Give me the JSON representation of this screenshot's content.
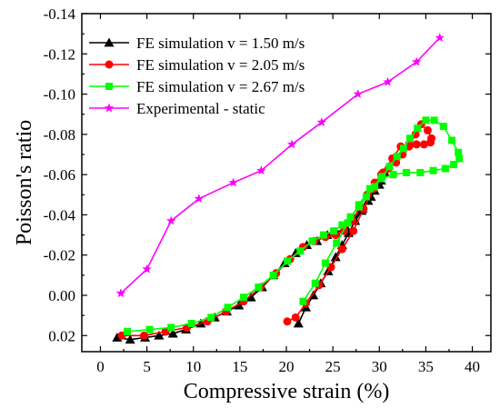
{
  "chart_data": {
    "type": "line",
    "xlabel": "Compressive strain (%)",
    "ylabel": "Poisson's ratio",
    "xlim": [
      -2,
      42
    ],
    "ylim": [
      -0.14,
      0.028
    ],
    "y_axis_inverted": true,
    "legend_position": "top-left",
    "grid": false,
    "x_ticks": [
      0,
      5,
      10,
      15,
      20,
      25,
      30,
      35,
      40
    ],
    "x_tick_labels": [
      "0",
      "5",
      "10",
      "15",
      "20",
      "25",
      "30",
      "35",
      "40"
    ],
    "y_ticks": [
      -0.14,
      -0.12,
      -0.1,
      -0.08,
      -0.06,
      -0.04,
      -0.02,
      0.0,
      0.02
    ],
    "y_tick_labels": [
      "-0.14",
      "-0.12",
      "-0.10",
      "-0.08",
      "-0.06",
      "-0.04",
      "-0.02",
      "0.00",
      "0.02"
    ],
    "series": [
      {
        "name": "FE simulation v = 1.50 m/s",
        "color": "#000000",
        "marker": "triangle",
        "points": [
          [
            1.8,
            0.021
          ],
          [
            3.2,
            0.022
          ],
          [
            4.8,
            0.021
          ],
          [
            6.3,
            0.02
          ],
          [
            7.8,
            0.019
          ],
          [
            9.2,
            0.017
          ],
          [
            10.8,
            0.014
          ],
          [
            12.3,
            0.011
          ],
          [
            13.6,
            0.008
          ],
          [
            14.9,
            0.005
          ],
          [
            16.2,
            0.001
          ],
          [
            17.4,
            -0.004
          ],
          [
            18.6,
            -0.01
          ],
          [
            19.8,
            -0.016
          ],
          [
            21.0,
            -0.021
          ],
          [
            22.2,
            -0.025
          ],
          [
            23.3,
            -0.027
          ],
          [
            24.4,
            -0.03
          ],
          [
            25.4,
            -0.031
          ],
          [
            26.4,
            -0.034
          ],
          [
            27.3,
            -0.038
          ],
          [
            28.2,
            -0.043
          ],
          [
            29.1,
            -0.049
          ],
          [
            30.0,
            -0.055
          ],
          [
            30.6,
            -0.061
          ],
          [
            30.2,
            -0.057
          ],
          [
            29.5,
            -0.052
          ],
          [
            28.8,
            -0.047
          ],
          [
            28.1,
            -0.042
          ],
          [
            27.4,
            -0.037
          ],
          [
            26.7,
            -0.031
          ],
          [
            26.0,
            -0.025
          ],
          [
            25.3,
            -0.019
          ],
          [
            24.5,
            -0.012
          ],
          [
            23.7,
            -0.006
          ],
          [
            22.9,
            0.0
          ],
          [
            22.1,
            0.006
          ],
          [
            21.3,
            0.014
          ]
        ]
      },
      {
        "name": "FE simulation v = 2.05 m/s",
        "color": "#ff0000",
        "marker": "circle",
        "points": [
          [
            2.3,
            0.02
          ],
          [
            4.7,
            0.02
          ],
          [
            7.0,
            0.018
          ],
          [
            9.3,
            0.016
          ],
          [
            11.5,
            0.013
          ],
          [
            13.5,
            0.008
          ],
          [
            15.4,
            0.003
          ],
          [
            17.2,
            -0.004
          ],
          [
            18.9,
            -0.011
          ],
          [
            20.4,
            -0.018
          ],
          [
            21.8,
            -0.024
          ],
          [
            23.0,
            -0.027
          ],
          [
            24.2,
            -0.029
          ],
          [
            25.3,
            -0.03
          ],
          [
            26.2,
            -0.032
          ],
          [
            27.1,
            -0.037
          ],
          [
            27.9,
            -0.044
          ],
          [
            28.7,
            -0.05
          ],
          [
            29.5,
            -0.056
          ],
          [
            30.2,
            -0.06
          ],
          [
            31.0,
            -0.063
          ],
          [
            31.8,
            -0.066
          ],
          [
            32.5,
            -0.07
          ],
          [
            33.2,
            -0.074
          ],
          [
            33.9,
            -0.08
          ],
          [
            34.5,
            -0.085
          ],
          [
            35.2,
            -0.082
          ],
          [
            35.6,
            -0.078
          ],
          [
            35.5,
            -0.076
          ],
          [
            34.8,
            -0.075
          ],
          [
            34.0,
            -0.075
          ],
          [
            33.2,
            -0.075
          ],
          [
            32.3,
            -0.074
          ],
          [
            31.4,
            -0.068
          ],
          [
            30.4,
            -0.061
          ],
          [
            29.4,
            -0.053
          ],
          [
            28.3,
            -0.043
          ],
          [
            27.2,
            -0.032
          ],
          [
            26.0,
            -0.023
          ],
          [
            24.8,
            -0.014
          ],
          [
            23.5,
            -0.005
          ],
          [
            22.1,
            0.004
          ],
          [
            21.0,
            0.011
          ],
          [
            20.1,
            0.013
          ]
        ]
      },
      {
        "name": "FE simulation v = 2.67 m/s",
        "color": "#00ff00",
        "marker": "square",
        "points": [
          [
            2.9,
            0.018
          ],
          [
            5.3,
            0.017
          ],
          [
            7.6,
            0.016
          ],
          [
            9.8,
            0.014
          ],
          [
            11.9,
            0.011
          ],
          [
            13.7,
            0.006
          ],
          [
            15.4,
            0.001
          ],
          [
            17.0,
            -0.004
          ],
          [
            18.6,
            -0.01
          ],
          [
            20.1,
            -0.017
          ],
          [
            21.5,
            -0.022
          ],
          [
            22.8,
            -0.027
          ],
          [
            24.0,
            -0.03
          ],
          [
            25.1,
            -0.032
          ],
          [
            26.0,
            -0.035
          ],
          [
            26.9,
            -0.039
          ],
          [
            27.8,
            -0.044
          ],
          [
            28.6,
            -0.049
          ],
          [
            29.5,
            -0.054
          ],
          [
            30.3,
            -0.059
          ],
          [
            31.1,
            -0.064
          ],
          [
            31.9,
            -0.069
          ],
          [
            32.6,
            -0.073
          ],
          [
            33.3,
            -0.078
          ],
          [
            34.1,
            -0.083
          ],
          [
            35.0,
            -0.087
          ],
          [
            35.9,
            -0.087
          ],
          [
            36.9,
            -0.084
          ],
          [
            37.8,
            -0.077
          ],
          [
            38.5,
            -0.071
          ],
          [
            38.6,
            -0.068
          ],
          [
            38.0,
            -0.065
          ],
          [
            37.1,
            -0.063
          ],
          [
            35.8,
            -0.062
          ],
          [
            34.4,
            -0.061
          ],
          [
            32.9,
            -0.061
          ],
          [
            31.5,
            -0.06
          ],
          [
            30.2,
            -0.058
          ],
          [
            29.0,
            -0.053
          ],
          [
            27.8,
            -0.045
          ],
          [
            26.6,
            -0.036
          ],
          [
            25.4,
            -0.026
          ],
          [
            24.2,
            -0.016
          ],
          [
            23.1,
            -0.006
          ],
          [
            21.8,
            0.003
          ]
        ]
      },
      {
        "name": "Experimental - static",
        "color": "#ff00ff",
        "marker": "star",
        "points": [
          [
            2.2,
            -0.001
          ],
          [
            5.0,
            -0.013
          ],
          [
            7.6,
            -0.037
          ],
          [
            10.6,
            -0.048
          ],
          [
            14.3,
            -0.056
          ],
          [
            17.3,
            -0.062
          ],
          [
            20.6,
            -0.075
          ],
          [
            23.8,
            -0.086
          ],
          [
            27.7,
            -0.1
          ],
          [
            30.9,
            -0.106
          ],
          [
            34.0,
            -0.116
          ],
          [
            36.5,
            -0.128
          ]
        ]
      }
    ]
  }
}
